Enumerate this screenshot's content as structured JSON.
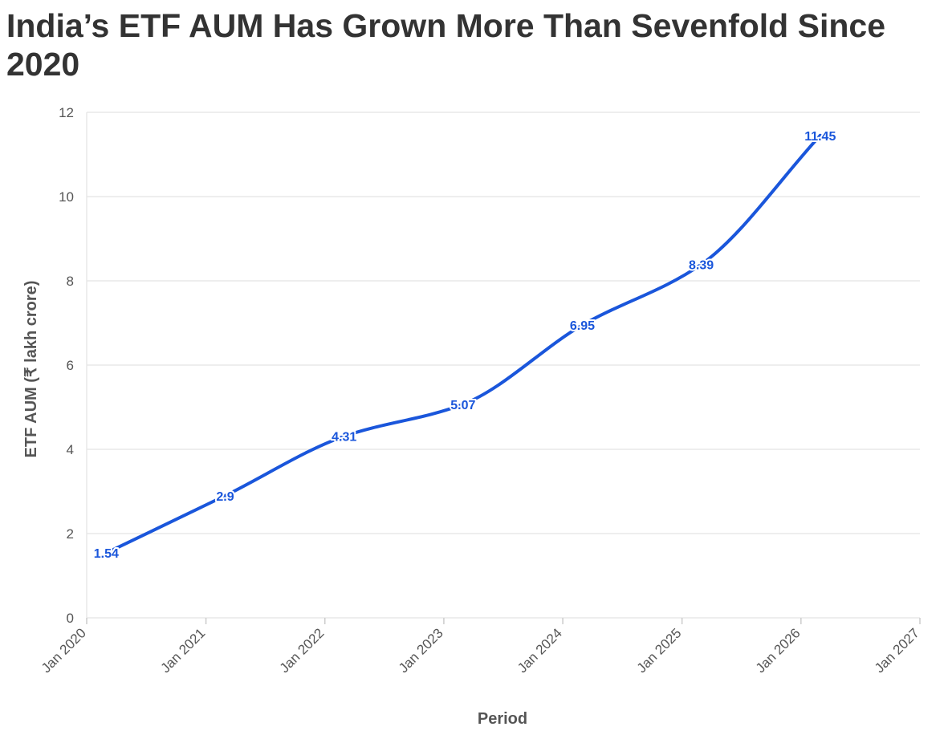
{
  "chart_data": {
    "type": "line",
    "title": "India’s ETF AUM Has Grown More Than Sevenfold Since 2020",
    "xlabel": "Period",
    "ylabel": "ETF AUM (₹ lakh crore)",
    "x_ticks": [
      "Jan 2020",
      "Jan 2021",
      "Jan 2022",
      "Jan 2023",
      "Jan 2024",
      "Jan 2025",
      "Jan 2026",
      "Jan 2027"
    ],
    "xlim": [
      "2020-01-01",
      "2027-01-01"
    ],
    "ylim": [
      0,
      12
    ],
    "y_ticks": [
      0,
      2,
      4,
      6,
      8,
      10,
      12
    ],
    "grid": true,
    "series": [
      {
        "color": "#1a56db",
        "points": [
          {
            "x": "2020-03-01",
            "y": 1.54,
            "label": "1.54"
          },
          {
            "x": "2021-03-01",
            "y": 2.9,
            "label": "2.9"
          },
          {
            "x": "2022-03-01",
            "y": 4.31,
            "label": "4.31"
          },
          {
            "x": "2023-03-01",
            "y": 5.07,
            "label": "5.07"
          },
          {
            "x": "2024-03-01",
            "y": 6.95,
            "label": "6.95"
          },
          {
            "x": "2025-03-01",
            "y": 8.39,
            "label": "8.39"
          },
          {
            "x": "2026-03-01",
            "y": 11.45,
            "label": "11.45"
          }
        ]
      }
    ]
  }
}
